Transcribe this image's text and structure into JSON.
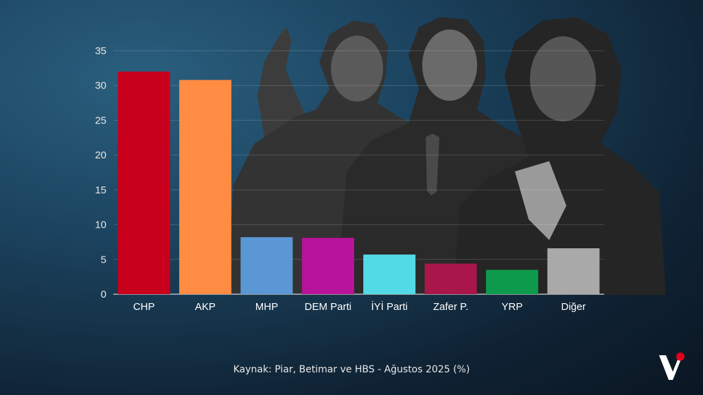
{
  "chart_data": {
    "type": "bar",
    "categories": [
      "CHP",
      "AKP",
      "MHP",
      "DEM Parti",
      "İYİ Parti",
      "Zafer P.",
      "YRP",
      "Diğer"
    ],
    "values": [
      32.0,
      30.8,
      8.2,
      8.1,
      5.7,
      4.4,
      3.5,
      6.6
    ],
    "colors": [
      "#c8001c",
      "#ff8c42",
      "#5b97d5",
      "#b8139b",
      "#52dbe6",
      "#a9164a",
      "#0e9a4c",
      "#a9a9a9"
    ],
    "ylim": [
      0,
      35
    ],
    "yticks": [
      0,
      5,
      10,
      15,
      20,
      25,
      30,
      35
    ],
    "grid": true
  },
  "source": "Kaynak: Piar, Betimar ve HBS - Ağustos 2025 (%)",
  "logo": {
    "icon": "v-logo-icon",
    "accent": "#e3001b"
  }
}
